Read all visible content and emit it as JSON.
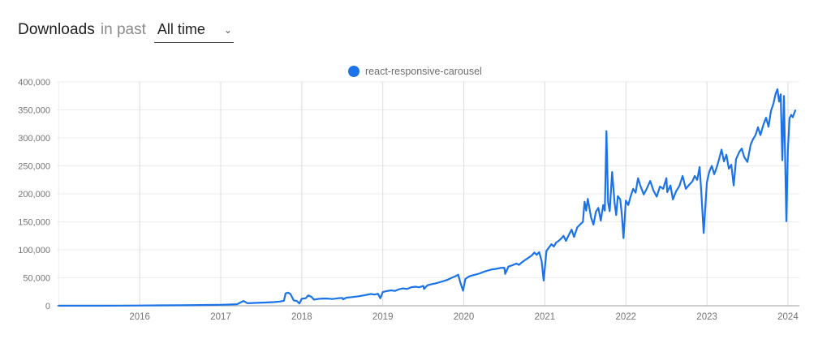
{
  "header": {
    "title": "Downloads",
    "subtitle": "in past",
    "range_select": {
      "value": "All time",
      "caret_glyph": "⌄"
    }
  },
  "legend": [
    {
      "label": "react-responsive-carousel",
      "color": "#1a73e8"
    }
  ],
  "colors": {
    "series_blue": "#1a73e8",
    "gridline_h": "#ebebeb",
    "gridline_v": "#dcdcdc",
    "baseline": "#b0b0b0",
    "tick_label": "#757575"
  },
  "chart_data": {
    "type": "line",
    "title": "",
    "xlabel": "",
    "ylabel": "",
    "grid": true,
    "legend_position": "top-center",
    "xlim": [
      2015,
      2024.15
    ],
    "ylim": [
      0,
      400000
    ],
    "x_ticks": [
      2016,
      2017,
      2018,
      2019,
      2020,
      2021,
      2022,
      2023,
      2024
    ],
    "y_ticks": [
      0,
      50000,
      100000,
      150000,
      200000,
      250000,
      300000,
      350000,
      400000
    ],
    "y_tick_labels": [
      "0",
      "50,000",
      "100,000",
      "150,000",
      "200,000",
      "250,000",
      "300,000",
      "350,000",
      "400,000"
    ],
    "series": [
      {
        "name": "react-responsive-carousel",
        "color": "#1a73e8",
        "points": [
          [
            2015.0,
            100
          ],
          [
            2015.25,
            150
          ],
          [
            2015.5,
            200
          ],
          [
            2015.75,
            300
          ],
          [
            2016.0,
            500
          ],
          [
            2016.25,
            700
          ],
          [
            2016.5,
            900
          ],
          [
            2016.75,
            1300
          ],
          [
            2017.0,
            1800
          ],
          [
            2017.1,
            2200
          ],
          [
            2017.2,
            2800
          ],
          [
            2017.28,
            8500
          ],
          [
            2017.33,
            4500
          ],
          [
            2017.45,
            5200
          ],
          [
            2017.55,
            5800
          ],
          [
            2017.65,
            6500
          ],
          [
            2017.73,
            7500
          ],
          [
            2017.78,
            9000
          ],
          [
            2017.8,
            22000
          ],
          [
            2017.83,
            23500
          ],
          [
            2017.86,
            21000
          ],
          [
            2017.9,
            9500
          ],
          [
            2017.94,
            8500
          ],
          [
            2017.97,
            4000
          ],
          [
            2018.0,
            12500
          ],
          [
            2018.05,
            13500
          ],
          [
            2018.08,
            18500
          ],
          [
            2018.12,
            16000
          ],
          [
            2018.15,
            11000
          ],
          [
            2018.22,
            12500
          ],
          [
            2018.3,
            13000
          ],
          [
            2018.38,
            12000
          ],
          [
            2018.45,
            13500
          ],
          [
            2018.5,
            14000
          ],
          [
            2018.51,
            11500
          ],
          [
            2018.55,
            14500
          ],
          [
            2018.62,
            15500
          ],
          [
            2018.7,
            17000
          ],
          [
            2018.78,
            19000
          ],
          [
            2018.85,
            21000
          ],
          [
            2018.9,
            20000
          ],
          [
            2018.94,
            21500
          ],
          [
            2018.97,
            13500
          ],
          [
            2019.0,
            24500
          ],
          [
            2019.04,
            26000
          ],
          [
            2019.1,
            27500
          ],
          [
            2019.15,
            26500
          ],
          [
            2019.2,
            29500
          ],
          [
            2019.25,
            31000
          ],
          [
            2019.3,
            30000
          ],
          [
            2019.35,
            33000
          ],
          [
            2019.4,
            34000
          ],
          [
            2019.45,
            33000
          ],
          [
            2019.5,
            35500
          ],
          [
            2019.51,
            30000
          ],
          [
            2019.55,
            36500
          ],
          [
            2019.6,
            38500
          ],
          [
            2019.65,
            40000
          ],
          [
            2019.7,
            42000
          ],
          [
            2019.75,
            44000
          ],
          [
            2019.8,
            46500
          ],
          [
            2019.85,
            50000
          ],
          [
            2019.9,
            53000
          ],
          [
            2019.93,
            55500
          ],
          [
            2019.96,
            40000
          ],
          [
            2019.99,
            27000
          ],
          [
            2020.02,
            48000
          ],
          [
            2020.06,
            52000
          ],
          [
            2020.1,
            54000
          ],
          [
            2020.15,
            56000
          ],
          [
            2020.2,
            58000
          ],
          [
            2020.25,
            61000
          ],
          [
            2020.3,
            63000
          ],
          [
            2020.35,
            65000
          ],
          [
            2020.4,
            66000
          ],
          [
            2020.45,
            67500
          ],
          [
            2020.5,
            68000
          ],
          [
            2020.51,
            57000
          ],
          [
            2020.55,
            70000
          ],
          [
            2020.6,
            72500
          ],
          [
            2020.65,
            75500
          ],
          [
            2020.68,
            73000
          ],
          [
            2020.72,
            78000
          ],
          [
            2020.76,
            82000
          ],
          [
            2020.8,
            86000
          ],
          [
            2020.84,
            90000
          ],
          [
            2020.87,
            95000
          ],
          [
            2020.9,
            91000
          ],
          [
            2020.93,
            96000
          ],
          [
            2020.96,
            80000
          ],
          [
            2020.985,
            45000
          ],
          [
            2021.02,
            98000
          ],
          [
            2021.05,
            104000
          ],
          [
            2021.08,
            110000
          ],
          [
            2021.11,
            106000
          ],
          [
            2021.14,
            113000
          ],
          [
            2021.17,
            116000
          ],
          [
            2021.2,
            120000
          ],
          [
            2021.23,
            125000
          ],
          [
            2021.26,
            116000
          ],
          [
            2021.3,
            128000
          ],
          [
            2021.33,
            136000
          ],
          [
            2021.36,
            123000
          ],
          [
            2021.4,
            140000
          ],
          [
            2021.44,
            146000
          ],
          [
            2021.47,
            150000
          ],
          [
            2021.49,
            186000
          ],
          [
            2021.51,
            170000
          ],
          [
            2021.53,
            191000
          ],
          [
            2021.57,
            158000
          ],
          [
            2021.6,
            145000
          ],
          [
            2021.63,
            168000
          ],
          [
            2021.66,
            175000
          ],
          [
            2021.69,
            152000
          ],
          [
            2021.72,
            180000
          ],
          [
            2021.74,
            170000
          ],
          [
            2021.76,
            312000
          ],
          [
            2021.78,
            185000
          ],
          [
            2021.8,
            169000
          ],
          [
            2021.83,
            239000
          ],
          [
            2021.86,
            184000
          ],
          [
            2021.88,
            162000
          ],
          [
            2021.9,
            196000
          ],
          [
            2021.93,
            190000
          ],
          [
            2021.95,
            162000
          ],
          [
            2021.97,
            121000
          ],
          [
            2022.0,
            188000
          ],
          [
            2022.03,
            180000
          ],
          [
            2022.06,
            196000
          ],
          [
            2022.09,
            209000
          ],
          [
            2022.12,
            202000
          ],
          [
            2022.15,
            228000
          ],
          [
            2022.18,
            214000
          ],
          [
            2022.22,
            199000
          ],
          [
            2022.26,
            210000
          ],
          [
            2022.3,
            223000
          ],
          [
            2022.34,
            206000
          ],
          [
            2022.38,
            195000
          ],
          [
            2022.42,
            213000
          ],
          [
            2022.46,
            209000
          ],
          [
            2022.5,
            228000
          ],
          [
            2022.51,
            203000
          ],
          [
            2022.55,
            215000
          ],
          [
            2022.58,
            190000
          ],
          [
            2022.62,
            205000
          ],
          [
            2022.66,
            214000
          ],
          [
            2022.7,
            232000
          ],
          [
            2022.74,
            209000
          ],
          [
            2022.78,
            216000
          ],
          [
            2022.82,
            222000
          ],
          [
            2022.85,
            232000
          ],
          [
            2022.88,
            225000
          ],
          [
            2022.91,
            248000
          ],
          [
            2022.93,
            205000
          ],
          [
            2022.96,
            130000
          ],
          [
            2023.0,
            221000
          ],
          [
            2023.03,
            240000
          ],
          [
            2023.06,
            250000
          ],
          [
            2023.09,
            235000
          ],
          [
            2023.12,
            247000
          ],
          [
            2023.15,
            262000
          ],
          [
            2023.18,
            279000
          ],
          [
            2023.21,
            258000
          ],
          [
            2023.24,
            270000
          ],
          [
            2023.27,
            245000
          ],
          [
            2023.3,
            252000
          ],
          [
            2023.33,
            215000
          ],
          [
            2023.36,
            262000
          ],
          [
            2023.4,
            275000
          ],
          [
            2023.43,
            281000
          ],
          [
            2023.46,
            266000
          ],
          [
            2023.5,
            257000
          ],
          [
            2023.54,
            288000
          ],
          [
            2023.57,
            298000
          ],
          [
            2023.6,
            305000
          ],
          [
            2023.63,
            319000
          ],
          [
            2023.66,
            305000
          ],
          [
            2023.7,
            325000
          ],
          [
            2023.73,
            336000
          ],
          [
            2023.76,
            320000
          ],
          [
            2023.79,
            348000
          ],
          [
            2023.82,
            361000
          ],
          [
            2023.85,
            380000
          ],
          [
            2023.87,
            387000
          ],
          [
            2023.89,
            365000
          ],
          [
            2023.91,
            378000
          ],
          [
            2023.93,
            260000
          ],
          [
            2023.95,
            375000
          ],
          [
            2023.98,
            151000
          ],
          [
            2024.0,
            280000
          ],
          [
            2024.02,
            335000
          ],
          [
            2024.04,
            341000
          ],
          [
            2024.06,
            337000
          ],
          [
            2024.09,
            349000
          ]
        ]
      }
    ]
  }
}
